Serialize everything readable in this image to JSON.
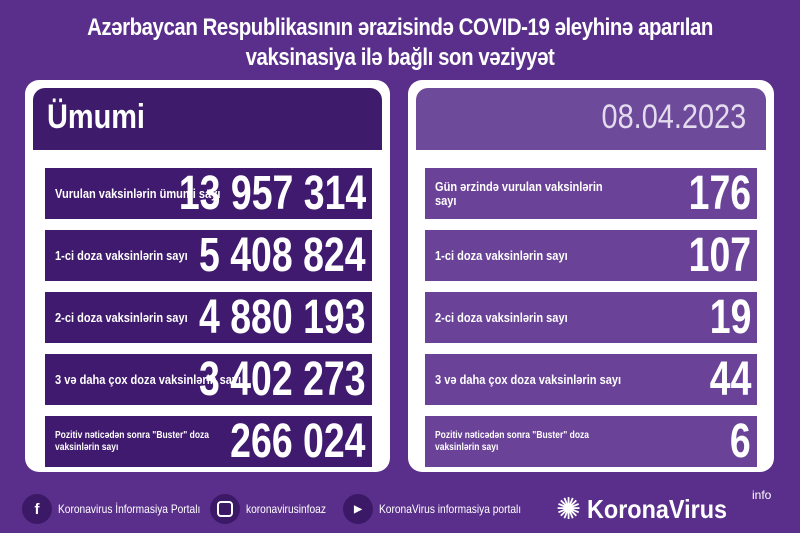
{
  "title": {
    "line1": "Azərbaycan Respublikasının ərazisində COVID-19 əleyhinə aparılan",
    "line2": "vaksinasiya ilə bağlı son vəziyyət"
  },
  "left": {
    "header": "Ümumi",
    "rows": [
      {
        "label": "Vurulan vaksinlərin ümumi sayı",
        "value": "13 957 314"
      },
      {
        "label": "1-ci doza vaksinlərin sayı",
        "value": "5 408 824"
      },
      {
        "label": "2-ci doza vaksinlərin sayı",
        "value": "4 880 193"
      },
      {
        "label": "3 və daha çox doza vaksinlərin sayı",
        "value": "3 402 273"
      },
      {
        "label": "Pozitiv nəticədən sonra \"Buster\" doza vaksinlərin sayı",
        "value": "266 024"
      }
    ]
  },
  "right": {
    "header": "08.04.2023",
    "rows": [
      {
        "label": "Gün ərzində vurulan vaksinlərin sayı",
        "value": "176"
      },
      {
        "label": "1-ci doza vaksinlərin sayı",
        "value": "107"
      },
      {
        "label": "2-ci doza vaksinlərin sayı",
        "value": "19"
      },
      {
        "label": "3 və daha çox doza vaksinlərin sayı",
        "value": "44"
      },
      {
        "label": "Pozitiv nəticədən sonra \"Buster\" doza vaksinlərin sayı",
        "value": "6"
      }
    ]
  },
  "footer": {
    "facebook": "Koronavirus İnformasiya Portalı",
    "instagram": "koronavirusinfoaz",
    "youtube": "KoronaVirus informasiya portalı",
    "brand": "KoronaVirus",
    "brand_sup": "info"
  },
  "colors": {
    "background": "#5a2f8c",
    "left_rows": "#3f1a6e",
    "right_rows": "#6a4398"
  }
}
